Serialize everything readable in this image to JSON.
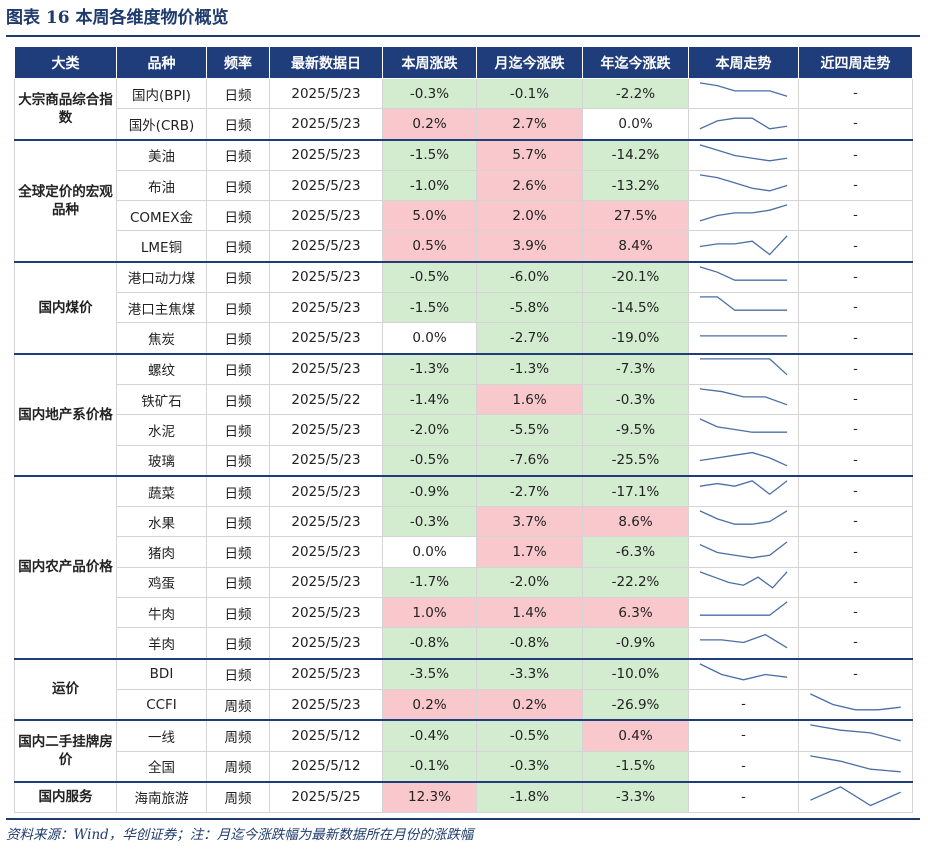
{
  "title": "图表  16    本周各维度物价概览",
  "source": "资料来源：Wind，华创证券；注：月迄今涨跌幅为最新数据所在月份的涨跌幅",
  "colors": {
    "header": "#1f3d7a",
    "positive": "#f8c8cc",
    "negative": "#d3ecd0",
    "line": "#4a6fa5"
  },
  "table": {
    "headers": [
      "大类",
      "品种",
      "频率",
      "最新数据日",
      "本周涨跌",
      "月迄今涨跌",
      "年迄今涨跌",
      "本周走势",
      "近四周走势"
    ],
    "groups": [
      {
        "category": "大宗商品综合指数",
        "rows": [
          {
            "item": "国内(BPI)",
            "freq": "日频",
            "date": "2025/5/23",
            "week": "-0.3%",
            "mtd": "-0.1%",
            "ytd": "-2.2%",
            "week_trend": [
              8,
              7,
              5,
              5,
              5,
              3
            ],
            "four_week": "-"
          },
          {
            "item": "国外(CRB)",
            "freq": "日频",
            "date": "2025/5/23",
            "week": "0.2%",
            "mtd": "2.7%",
            "ytd": "0.0%",
            "week_trend": [
              2,
              5,
              6,
              6,
              2,
              3
            ],
            "four_week": "-"
          }
        ]
      },
      {
        "category": "全球定价的宏观品种",
        "rows": [
          {
            "item": "美油",
            "freq": "日频",
            "date": "2025/5/23",
            "week": "-1.5%",
            "mtd": "5.7%",
            "ytd": "-14.2%",
            "week_trend": [
              8,
              6,
              4,
              3,
              2,
              3
            ],
            "four_week": "-"
          },
          {
            "item": "布油",
            "freq": "日频",
            "date": "2025/5/23",
            "week": "-1.0%",
            "mtd": "2.6%",
            "ytd": "-13.2%",
            "week_trend": [
              8,
              7,
              5,
              3,
              2,
              4
            ],
            "four_week": "-"
          },
          {
            "item": "COMEX金",
            "freq": "日频",
            "date": "2025/5/23",
            "week": "5.0%",
            "mtd": "2.0%",
            "ytd": "27.5%",
            "week_trend": [
              2,
              4,
              5,
              5,
              6,
              8
            ],
            "four_week": "-"
          },
          {
            "item": "LME铜",
            "freq": "日频",
            "date": "2025/5/23",
            "week": "0.5%",
            "mtd": "3.9%",
            "ytd": "8.4%",
            "week_trend": [
              4,
              5,
              5,
              6,
              1,
              8
            ],
            "four_week": "-"
          }
        ]
      },
      {
        "category": "国内煤价",
        "rows": [
          {
            "item": "港口动力煤",
            "freq": "日频",
            "date": "2025/5/23",
            "week": "-0.5%",
            "mtd": "-6.0%",
            "ytd": "-20.1%",
            "week_trend": [
              8,
              6,
              3,
              3,
              3,
              3
            ],
            "four_week": "-"
          },
          {
            "item": "港口主焦煤",
            "freq": "日频",
            "date": "2025/5/23",
            "week": "-1.5%",
            "mtd": "-5.8%",
            "ytd": "-14.5%",
            "week_trend": [
              8,
              8,
              3,
              3,
              3,
              3
            ],
            "four_week": "-"
          },
          {
            "item": "焦炭",
            "freq": "日频",
            "date": "2025/5/23",
            "week": "0.0%",
            "mtd": "-2.7%",
            "ytd": "-19.0%",
            "week_trend": [
              5,
              5,
              5,
              5,
              5,
              5
            ],
            "four_week": "-"
          }
        ]
      },
      {
        "category": "国内地产系价格",
        "rows": [
          {
            "item": "螺纹",
            "freq": "日频",
            "date": "2025/5/23",
            "week": "-1.3%",
            "mtd": "-1.3%",
            "ytd": "-7.3%",
            "week_trend": [
              8,
              8,
              8,
              8,
              8,
              2
            ],
            "four_week": "-"
          },
          {
            "item": "铁矿石",
            "freq": "日频",
            "date": "2025/5/22",
            "week": "-1.4%",
            "mtd": "1.6%",
            "ytd": "-0.3%",
            "week_trend": [
              8,
              7,
              5,
              5,
              2
            ],
            "four_week": "-"
          },
          {
            "item": "水泥",
            "freq": "日频",
            "date": "2025/5/23",
            "week": "-2.0%",
            "mtd": "-5.5%",
            "ytd": "-9.5%",
            "week_trend": [
              8,
              5,
              4,
              3,
              3,
              3
            ],
            "four_week": "-"
          },
          {
            "item": "玻璃",
            "freq": "日频",
            "date": "2025/5/23",
            "week": "-0.5%",
            "mtd": "-7.6%",
            "ytd": "-25.5%",
            "week_trend": [
              4,
              5,
              6,
              7,
              5,
              2
            ],
            "four_week": "-"
          }
        ]
      },
      {
        "category": "国内农产品价格",
        "rows": [
          {
            "item": "蔬菜",
            "freq": "日频",
            "date": "2025/5/23",
            "week": "-0.9%",
            "mtd": "-2.7%",
            "ytd": "-17.1%",
            "week_trend": [
              6,
              7,
              6,
              8,
              3,
              8
            ],
            "four_week": "-"
          },
          {
            "item": "水果",
            "freq": "日频",
            "date": "2025/5/23",
            "week": "-0.3%",
            "mtd": "3.7%",
            "ytd": "8.6%",
            "week_trend": [
              8,
              5,
              3,
              3,
              4,
              8
            ],
            "four_week": "-"
          },
          {
            "item": "猪肉",
            "freq": "日频",
            "date": "2025/5/23",
            "week": "0.0%",
            "mtd": "1.7%",
            "ytd": "-6.3%",
            "week_trend": [
              7,
              4,
              3,
              2,
              3,
              8
            ],
            "four_week": "-"
          },
          {
            "item": "鸡蛋",
            "freq": "日频",
            "date": "2025/5/23",
            "week": "-1.7%",
            "mtd": "-2.0%",
            "ytd": "-22.2%",
            "week_trend": [
              8,
              6,
              4,
              3,
              6,
              2,
              8
            ],
            "four_week": "-"
          },
          {
            "item": "牛肉",
            "freq": "日频",
            "date": "2025/5/23",
            "week": "1.0%",
            "mtd": "1.4%",
            "ytd": "6.3%",
            "week_trend": [
              3,
              3,
              3,
              3,
              3,
              8
            ],
            "four_week": "-"
          },
          {
            "item": "羊肉",
            "freq": "日频",
            "date": "2025/5/23",
            "week": "-0.8%",
            "mtd": "-0.8%",
            "ytd": "-0.9%",
            "week_trend": [
              5,
              5,
              4,
              7,
              2
            ],
            "four_week": "-"
          }
        ]
      },
      {
        "category": "运价",
        "rows": [
          {
            "item": "BDI",
            "freq": "日频",
            "date": "2025/5/23",
            "week": "-3.5%",
            "mtd": "-3.3%",
            "ytd": "-10.0%",
            "week_trend": [
              8,
              4,
              2,
              4,
              3
            ],
            "four_week": "-"
          },
          {
            "item": "CCFI",
            "freq": "周频",
            "date": "2025/5/23",
            "week": "0.2%",
            "mtd": "0.2%",
            "ytd": "-26.9%",
            "week_trend": null,
            "four_week_trend": [
              8,
              4,
              2,
              2,
              3
            ]
          }
        ]
      },
      {
        "category": "国内二手挂牌房价",
        "rows": [
          {
            "item": "一线",
            "freq": "周频",
            "date": "2025/5/12",
            "week": "-0.4%",
            "mtd": "-0.5%",
            "ytd": "0.4%",
            "week_trend": null,
            "four_week_trend": [
              8,
              6,
              5,
              2
            ]
          },
          {
            "item": "全国",
            "freq": "周频",
            "date": "2025/5/12",
            "week": "-0.1%",
            "mtd": "-0.3%",
            "ytd": "-1.5%",
            "week_trend": null,
            "four_week_trend": [
              8,
              6,
              3,
              2
            ]
          }
        ]
      },
      {
        "category": "国内服务",
        "rows": [
          {
            "item": "海南旅游",
            "freq": "周频",
            "date": "2025/5/25",
            "week": "12.3%",
            "mtd": "-1.8%",
            "ytd": "-3.3%",
            "week_trend": null,
            "four_week_trend": [
              3,
              8,
              1,
              6
            ]
          }
        ]
      }
    ]
  }
}
